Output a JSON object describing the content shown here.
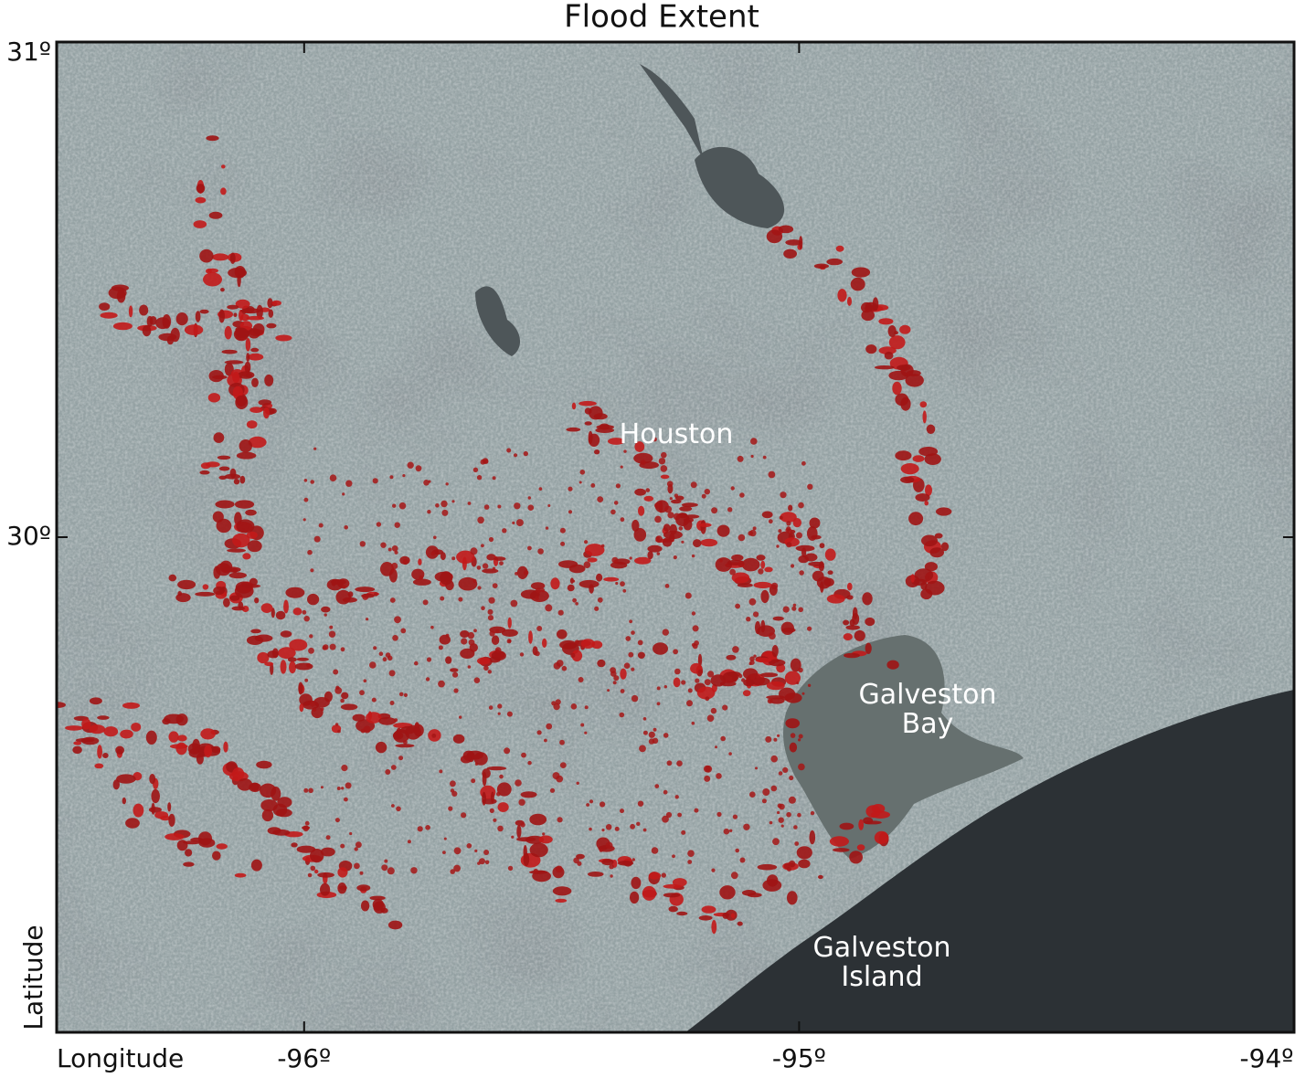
{
  "map": {
    "title": "Flood Extent",
    "x_label": "Longitude",
    "y_label": "Latitude",
    "xlim": [
      -96.5,
      -94
    ],
    "ylim": [
      29,
      31
    ],
    "xticks": [
      {
        "value": -96,
        "label": "-96º"
      },
      {
        "value": -95,
        "label": "-95º"
      },
      {
        "value": -94,
        "label": "-94º"
      }
    ],
    "yticks": [
      {
        "value": 31,
        "label": "31º"
      },
      {
        "value": 30,
        "label": "30º"
      }
    ],
    "places": [
      "Houston",
      "Galveston Bay",
      "Galveston Island"
    ]
  }
}
